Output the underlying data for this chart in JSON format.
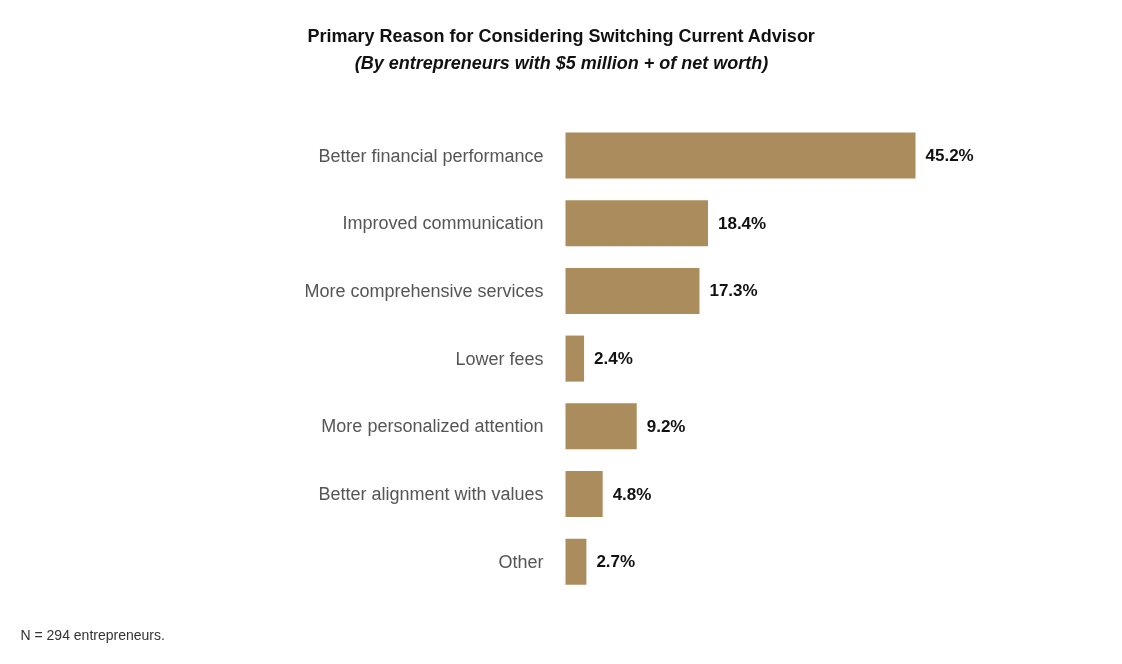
{
  "chart_data": {
    "type": "bar",
    "orientation": "horizontal",
    "title": "Primary Reason for Considering Switching Current Advisor",
    "subtitle": "(By entrepreneurs with $5 million + of net worth)",
    "categories": [
      "Better financial performance",
      "Improved communication",
      "More comprehensive services",
      "Lower fees",
      "More personalized attention",
      "Better alignment with values",
      "Other"
    ],
    "values": [
      45.2,
      18.4,
      17.3,
      2.4,
      9.2,
      4.8,
      2.7
    ],
    "value_labels": [
      "45.2%",
      "18.4%",
      "17.3%",
      "2.4%",
      "9.2%",
      "4.8%",
      "2.7%"
    ],
    "color": "#ab8c5c",
    "annotations": [
      "N = 294 entrepreneurs."
    ],
    "grid": false
  }
}
